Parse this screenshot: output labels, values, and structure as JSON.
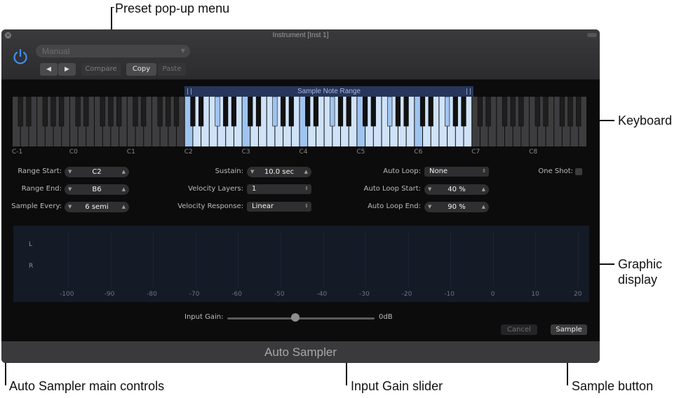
{
  "callouts": {
    "preset_menu": "Preset pop-up menu",
    "keyboard": "Keyboard",
    "graphic_display": "Graphic\ndisplay",
    "main_controls": "Auto Sampler main controls",
    "input_gain_slider": "Input Gain slider",
    "sample_button": "Sample button"
  },
  "window": {
    "title": "Instrument [Inst 1]",
    "footer_title": "Auto Sampler"
  },
  "header": {
    "preset_value": "Manual",
    "prev_label": "◀",
    "next_label": "▶",
    "compare_label": "Compare",
    "copy_label": "Copy",
    "paste_label": "Paste"
  },
  "keyboard": {
    "range_label": "Sample Note Range",
    "octave_labels": [
      "C-1",
      "C0",
      "C1",
      "C2",
      "C3",
      "C4",
      "C5",
      "C6",
      "C7",
      "C8"
    ],
    "highlight_start": "C2",
    "highlight_end": "B6",
    "sampled_notes": [
      "C2",
      "F#2",
      "C3",
      "F#3",
      "C4",
      "F#4",
      "C5",
      "F#5",
      "C6",
      "F#6"
    ],
    "colors": {
      "highlight": "#cfe2f7",
      "sampled": "#9fc4ef",
      "range_header": "#27355a"
    }
  },
  "params": {
    "range_start": {
      "label": "Range Start:",
      "value": "C2"
    },
    "range_end": {
      "label": "Range End:",
      "value": "B6"
    },
    "sample_every": {
      "label": "Sample Every:",
      "value": "6 semi"
    },
    "sustain": {
      "label": "Sustain:",
      "value": "10.0 sec"
    },
    "velocity_layers": {
      "label": "Velocity Layers:",
      "value": "1"
    },
    "velocity_response": {
      "label": "Velocity Response:",
      "value": "Linear"
    },
    "auto_loop": {
      "label": "Auto Loop:",
      "value": "None"
    },
    "auto_loop_start": {
      "label": "Auto Loop Start:",
      "value": "40 %"
    },
    "auto_loop_end": {
      "label": "Auto Loop End:",
      "value": "90 %"
    },
    "one_shot": {
      "label": "One Shot:",
      "checked": false
    },
    "stepper_down": "▼",
    "stepper_up": "▲",
    "select_arrows": "⇕"
  },
  "graph": {
    "channels": [
      "L",
      "R"
    ],
    "ticks": [
      "-100",
      "-90",
      "-80",
      "-70",
      "-60",
      "-50",
      "-40",
      "-30",
      "-20",
      "-10",
      "0",
      "10",
      "20"
    ]
  },
  "input_gain": {
    "label": "Input Gain:",
    "value_text": "0dB",
    "level": 0.46
  },
  "buttons": {
    "cancel": "Cancel",
    "sample": "Sample"
  }
}
